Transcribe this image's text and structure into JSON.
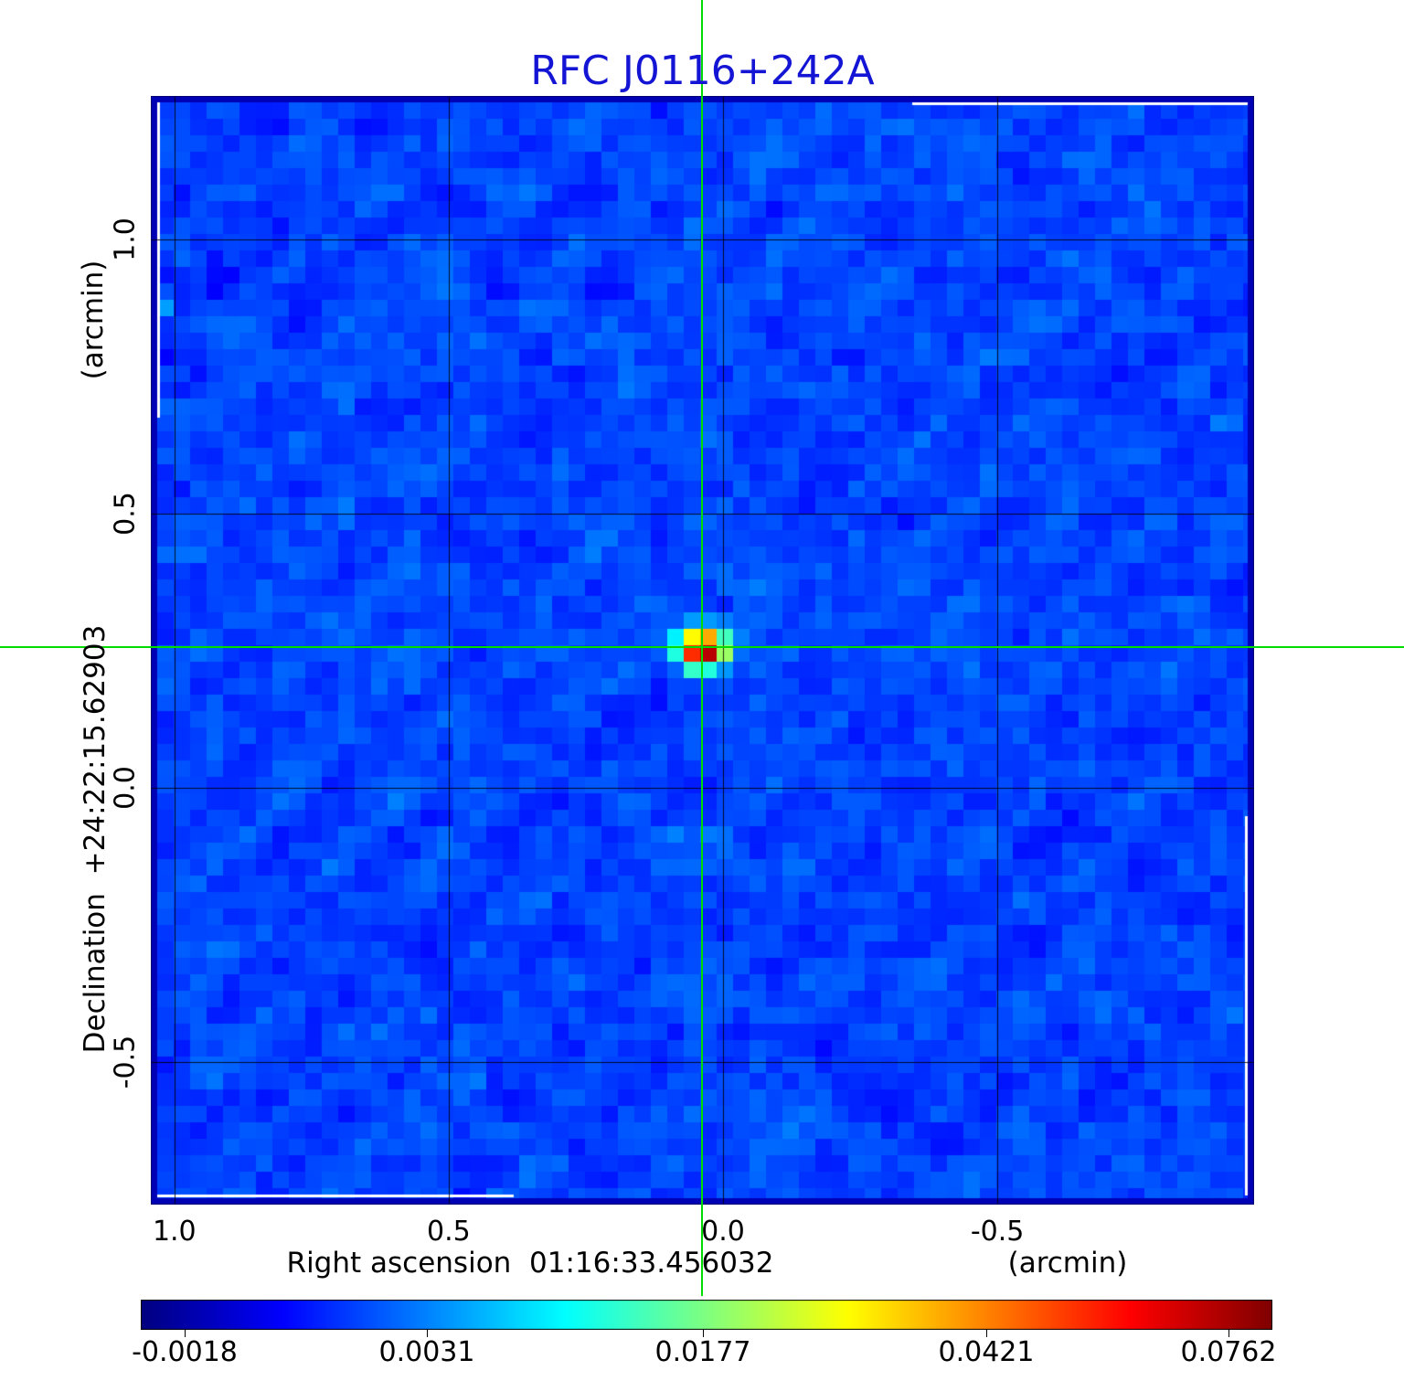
{
  "title": {
    "text": "RFC J0116+242A",
    "color": "#1414d4"
  },
  "x_axis": {
    "name": "Right ascension",
    "coordinate": "01:16:33.456032",
    "unit": "(arcmin)",
    "ticks": [
      {
        "label": "1.0",
        "value": 1.0
      },
      {
        "label": "0.5",
        "value": 0.5
      },
      {
        "label": "0.0",
        "value": 0.0
      },
      {
        "label": "-0.5",
        "value": -0.5
      }
    ]
  },
  "y_axis": {
    "name": "Declination",
    "coordinate": "+24:22:15.62903",
    "unit": "(arcmin)",
    "ticks": [
      {
        "label": "1.0",
        "value": 1.0
      },
      {
        "label": "0.5",
        "value": 0.5
      },
      {
        "label": "0.0",
        "value": 0.0
      },
      {
        "label": "-0.5",
        "value": -0.5
      }
    ]
  },
  "colorbar": {
    "colormap": "jet",
    "tick_labels": [
      "-0.0018",
      "0.0031",
      "0.0177",
      "0.0421",
      "0.0762"
    ],
    "tick_positions": [
      0.039,
      0.253,
      0.497,
      0.747,
      0.961
    ]
  },
  "crosshair": {
    "color": "#00dc00",
    "ra_offset_arcmin": 0.038,
    "dec_offset_arcmin": 0.257
  },
  "chart_data": {
    "type": "heatmap",
    "title": "RFC J0116+242A",
    "xlabel": "Right ascension 01:16:33.456032 (arcmin)",
    "ylabel": "Declination +24:22:15.62903 (arcmin)",
    "x_range_arcmin": [
      1.043,
      -0.968
    ],
    "y_range_arcmin": [
      -0.76,
      1.262
    ],
    "grid": true,
    "x_gridlines_arcmin": [
      1.0,
      0.5,
      0.0,
      -0.5
    ],
    "y_gridlines_arcmin": [
      1.0,
      0.5,
      0.0,
      -0.5
    ],
    "colormap": "jet",
    "color_scale_tick_values": [
      -0.0018,
      0.0031,
      0.0177,
      0.0421,
      0.0762
    ],
    "source": {
      "description": "bright compact source at crosshair, dark-red core with orange/yellow ring and cyan halo",
      "ra_offset_arcmin": 0.037,
      "dec_offset_arcmin": 0.253,
      "display_peak": 0.0762
    },
    "secondary_feature": {
      "description": "small cyan patch at left image edge with dark-blue pixels nearby",
      "ra_offset_arcmin": 1.03,
      "dec_offset_arcmin": 0.88
    },
    "background": "blue interferometric noise field near low end of color scale"
  }
}
